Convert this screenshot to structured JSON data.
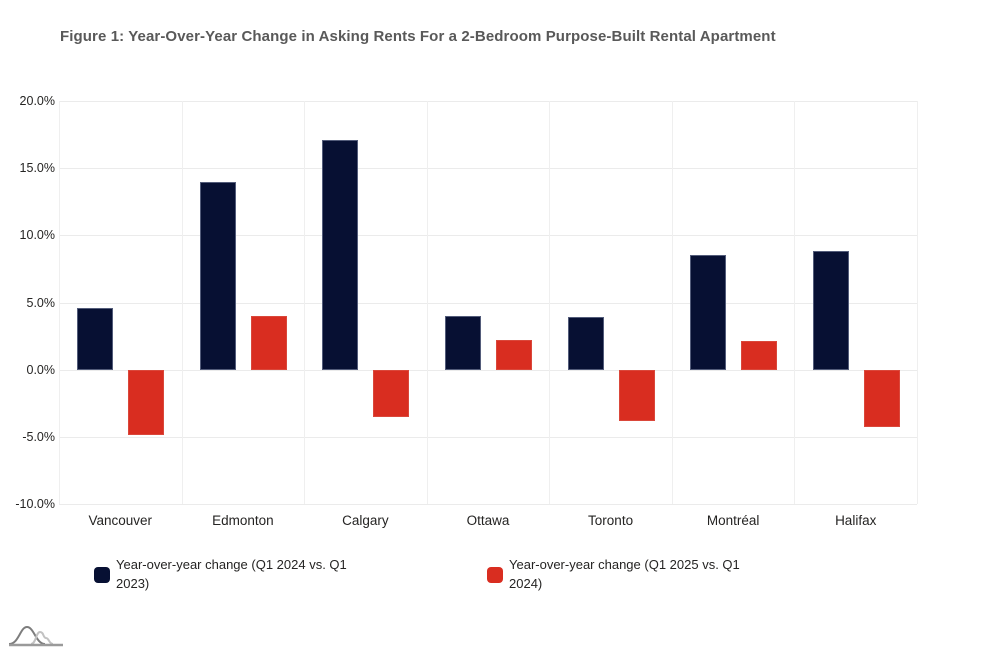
{
  "title": "Figure 1: Year-Over-Year Change in Asking Rents For a 2-Bedroom Purpose-Built Rental Apartment",
  "colors": {
    "background": "#ffffff",
    "title_text": "#595959",
    "axis_text": "#252423",
    "gridline": "#ebebeb",
    "navy": "#071033",
    "red": "#d92d20"
  },
  "chart_data": {
    "type": "bar",
    "title": "Figure 1: Year-Over-Year Change in Asking Rents For a 2-Bedroom Purpose-Built Rental Apartment",
    "categories": [
      "Vancouver",
      "Edmonton",
      "Calgary",
      "Ottawa",
      "Toronto",
      "Montréal",
      "Halifax"
    ],
    "series": [
      {
        "key": "q1-2024",
        "name": "Year-over-year change (Q1 2024 vs. Q1 2023)",
        "color": "#071033",
        "values": [
          4.6,
          14.0,
          17.1,
          4.0,
          3.9,
          8.5,
          8.8
        ]
      },
      {
        "key": "q1-2025",
        "name": "Year-over-year change (Q1 2025 vs. Q1 2024)",
        "color": "#d92d20",
        "values": [
          -4.9,
          4.0,
          -3.5,
          2.2,
          -3.8,
          2.1,
          -4.3
        ]
      }
    ],
    "xlabel": "",
    "ylabel": "",
    "ylim": [
      -10,
      20
    ],
    "ytick_step": 5,
    "ytick_labels": [
      "20.0%",
      "15.0%",
      "10.0%",
      "5.0%",
      "0.0%",
      "-5.0%",
      "-10.0%"
    ],
    "grid": true,
    "legend_position": "bottom"
  },
  "logo": {
    "icon": "overlapping-bell-curves"
  }
}
